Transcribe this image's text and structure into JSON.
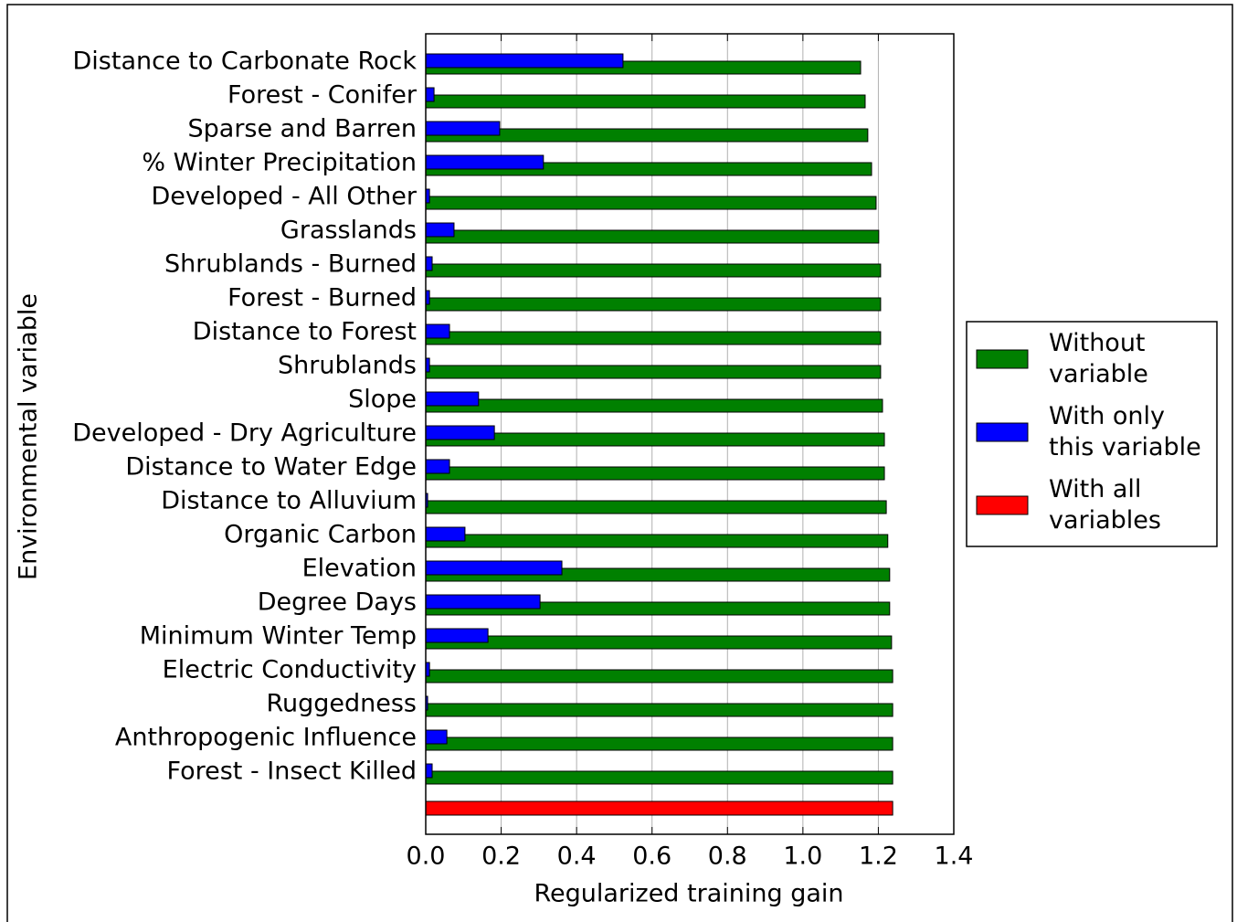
{
  "chart_data": {
    "type": "hbar",
    "xlabel": "Regularized training gain",
    "ylabel": "Environmental variable",
    "categories": [
      "Distance to Carbonate Rock",
      "Forest - Conifer",
      "Sparse and Barren",
      "% Winter Precipitation",
      "Developed - All Other",
      "Grasslands",
      "Shrublands - Burned",
      "Forest - Burned",
      "Distance to Forest",
      "Shrublands",
      "Slope",
      "Developed - Dry Agriculture",
      "Distance to Water Edge",
      "Distance to Alluvium",
      "Organic Carbon",
      "Elevation",
      "Degree Days",
      "Minimum Winter Temp",
      "Electric Conductivity",
      "Ruggedness",
      "Anthropogenic Influence",
      "Forest - Insect Killed",
      null
    ],
    "series": [
      {
        "name": "Without variable",
        "color": "#008000",
        "values": [
          1.153,
          1.165,
          1.172,
          1.182,
          1.194,
          1.201,
          1.206,
          1.206,
          1.206,
          1.206,
          1.211,
          1.216,
          1.216,
          1.221,
          1.225,
          1.23,
          1.23,
          1.235,
          1.238,
          1.238,
          1.238,
          1.238,
          null
        ]
      },
      {
        "name": "With only this variable",
        "color": "#0000ff",
        "values": [
          0.523,
          0.022,
          0.196,
          0.312,
          0.01,
          0.075,
          0.017,
          0.01,
          0.063,
          0.01,
          0.14,
          0.182,
          0.063,
          0.005,
          0.104,
          0.361,
          0.303,
          0.165,
          0.01,
          0.005,
          0.056,
          0.017,
          null
        ]
      },
      {
        "name": "With all variables",
        "color": "#ff0000",
        "values": [
          null,
          null,
          null,
          null,
          null,
          null,
          null,
          null,
          null,
          null,
          null,
          null,
          null,
          null,
          null,
          null,
          null,
          null,
          null,
          null,
          null,
          null,
          1.238
        ]
      }
    ],
    "xlim": [
      0,
      1.4
    ],
    "xticks": [
      {
        "value": 0,
        "label": "0.0"
      },
      0.2,
      0.4,
      0.6,
      0.8,
      {
        "value": 1,
        "label": "1.0"
      },
      1.2,
      1.4
    ],
    "grid": true,
    "legend": "right"
  }
}
